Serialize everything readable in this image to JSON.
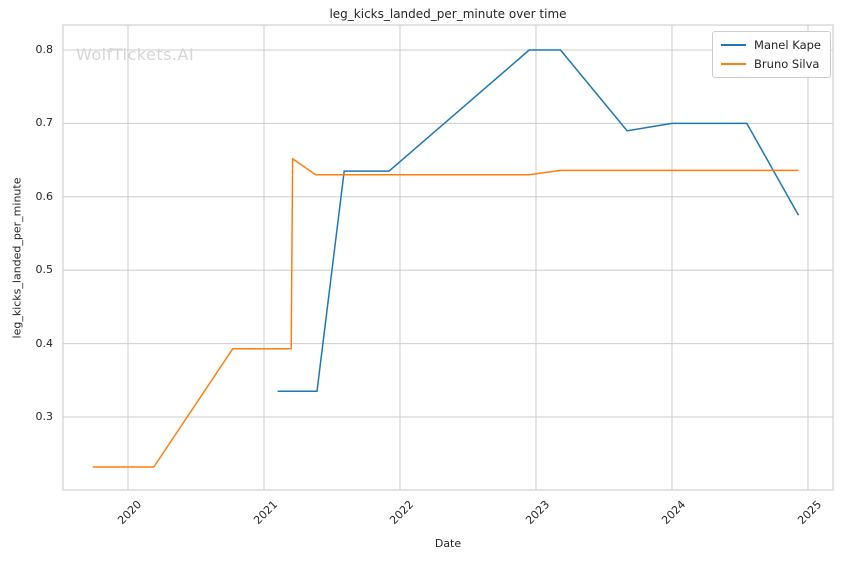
{
  "watermark": "WolfTickets.AI",
  "colors": {
    "grid": "#cccccc",
    "spine": "#c9c9c9",
    "text": "#262626",
    "watermark": "#d5d5d5",
    "background": "#ffffff",
    "series_blue": "#1f77b4",
    "series_orange": "#ff7f0e"
  },
  "chart_data": {
    "type": "line",
    "title": "leg_kicks_landed_per_minute over time",
    "xlabel": "Date",
    "ylabel": "leg_kicks_landed_per_minute",
    "grid": true,
    "legend_position": "upper right",
    "x_ticks": [
      2020,
      2021,
      2022,
      2023,
      2024,
      2025
    ],
    "y_ticks": [
      0.3,
      0.4,
      0.5,
      0.6,
      0.7,
      0.8
    ],
    "x_range": [
      2019.522,
      2025.184
    ],
    "y_range": [
      0.2006,
      0.8341
    ],
    "series": [
      {
        "name": "Manel Kape",
        "color": "#1f77b4",
        "x": [
          2021.1,
          2021.39,
          2021.59,
          2021.92,
          2022.95,
          2023.18,
          2023.67,
          2024.0,
          2024.55,
          2024.93
        ],
        "y": [
          0.335,
          0.335,
          0.635,
          0.635,
          0.8,
          0.8,
          0.69,
          0.7,
          0.7,
          0.575
        ]
      },
      {
        "name": "Bruno Silva",
        "color": "#ff7f0e",
        "x": [
          2019.74,
          2020.19,
          2020.77,
          2021.2,
          2021.21,
          2021.38,
          2022.95,
          2023.18,
          2024.93
        ],
        "y": [
          0.232,
          0.232,
          0.393,
          0.393,
          0.652,
          0.63,
          0.63,
          0.636,
          0.636
        ]
      }
    ]
  }
}
